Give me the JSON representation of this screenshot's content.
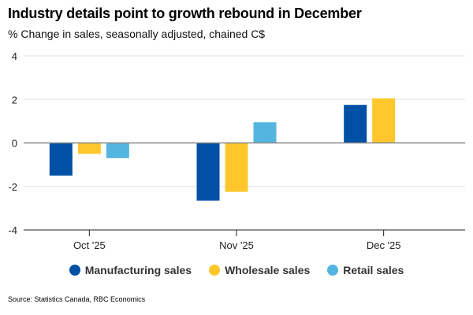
{
  "chart_data": {
    "type": "bar",
    "title": "Industry details point to growth rebound in December",
    "subtitle": "% Change in sales, seasonally adjusted, chained C$",
    "categories": [
      "Oct '25",
      "Nov '25",
      "Dec '25"
    ],
    "series": [
      {
        "name": "Manufacturing sales",
        "color": "#0051A5",
        "values": [
          -1.5,
          -2.65,
          1.75
        ]
      },
      {
        "name": "Wholesale sales",
        "color": "#FFC72C",
        "values": [
          -0.5,
          -2.25,
          2.05
        ]
      },
      {
        "name": "Retail sales",
        "color": "#53B5E0",
        "values": [
          -0.7,
          0.95,
          null
        ]
      }
    ],
    "xlabel": "",
    "ylabel": "",
    "ylim": [
      -4,
      4
    ],
    "yticks": [
      4,
      2,
      0,
      -2,
      -4
    ],
    "grid": true,
    "legend_position": "bottom",
    "source": "Source: Statistics Canada, RBC Economics"
  }
}
